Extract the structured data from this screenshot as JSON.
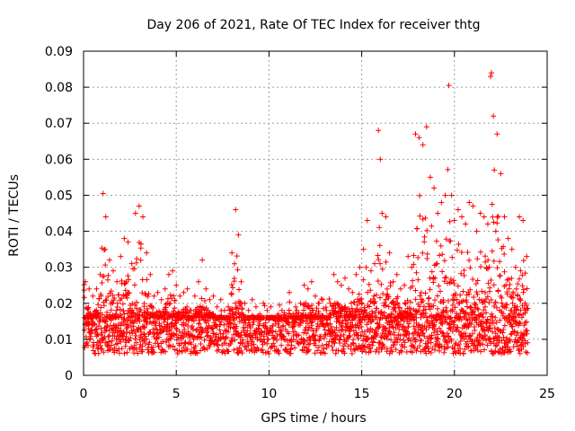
{
  "chart_data": {
    "type": "scatter",
    "title": "Day 206 of 2021, Rate Of TEC Index for receiver thtg",
    "xlabel": "GPS time / hours",
    "ylabel": "ROTI / TECUs",
    "xlim": [
      0,
      25
    ],
    "ylim": [
      0,
      0.09
    ],
    "xticks": [
      "0",
      "5",
      "10",
      "15",
      "20",
      "25"
    ],
    "yticks": [
      "0",
      "0.01",
      "0.02",
      "0.03",
      "0.04",
      "0.05",
      "0.06",
      "0.07",
      "0.08",
      "0.09"
    ],
    "grid": true,
    "marker": "+",
    "color": "#ff0000",
    "series": [
      {
        "x": [
          0.1,
          0.3,
          0.5,
          0.7,
          0.9,
          1.05,
          1.2,
          1.4,
          1.6,
          1.8,
          2.0,
          2.2,
          2.4,
          2.6,
          2.8,
          3.0,
          3.2,
          3.4,
          3.6,
          3.8,
          4.0,
          4.2,
          4.4,
          4.6,
          4.8,
          5.0,
          5.2,
          5.4,
          5.6,
          5.8,
          6.0,
          6.2,
          6.4,
          6.6,
          6.8,
          7.0,
          7.2,
          7.4,
          7.6,
          7.8,
          8.0,
          8.2,
          8.35,
          8.5,
          8.7,
          8.9,
          9.1,
          9.3,
          9.5,
          9.7,
          9.9,
          10.1,
          10.3,
          10.5,
          10.7,
          10.9,
          11.1,
          11.3,
          11.5,
          11.7,
          11.9,
          12.1,
          12.3,
          12.5,
          12.7,
          12.9,
          13.1,
          13.3,
          13.5,
          13.7,
          13.9,
          14.1,
          14.3,
          14.5,
          14.7,
          14.9,
          15.1,
          15.3,
          15.5,
          15.7,
          15.9,
          16.0,
          16.1,
          16.3,
          16.5,
          16.7,
          16.9,
          17.1,
          17.3,
          17.5,
          17.7,
          17.9,
          18.1,
          18.3,
          18.5,
          18.7,
          18.9,
          19.1,
          19.3,
          19.5,
          19.7,
          19.85,
          20.0,
          20.2,
          20.4,
          20.6,
          20.8,
          21.0,
          21.2,
          21.4,
          21.6,
          21.8,
          21.95,
          22.0,
          22.1,
          22.3,
          22.5,
          22.7,
          22.9,
          23.1,
          23.3,
          23.5,
          23.7,
          23.9
        ],
        "y": [
          0.026,
          0.024,
          0.022,
          0.024,
          0.028,
          0.0505,
          0.044,
          0.032,
          0.029,
          0.026,
          0.033,
          0.038,
          0.037,
          0.031,
          0.045,
          0.047,
          0.044,
          0.034,
          0.028,
          0.022,
          0.023,
          0.021,
          0.024,
          0.028,
          0.029,
          0.025,
          0.022,
          0.023,
          0.024,
          0.018,
          0.022,
          0.026,
          0.032,
          0.024,
          0.021,
          0.022,
          0.019,
          0.021,
          0.018,
          0.019,
          0.034,
          0.046,
          0.039,
          0.026,
          0.02,
          0.018,
          0.021,
          0.019,
          0.017,
          0.02,
          0.018,
          0.019,
          0.016,
          0.017,
          0.018,
          0.015,
          0.023,
          0.017,
          0.018,
          0.02,
          0.025,
          0.024,
          0.026,
          0.022,
          0.02,
          0.021,
          0.018,
          0.02,
          0.028,
          0.026,
          0.025,
          0.027,
          0.024,
          0.023,
          0.028,
          0.03,
          0.035,
          0.043,
          0.029,
          0.031,
          0.068,
          0.06,
          0.045,
          0.044,
          0.034,
          0.026,
          0.028,
          0.024,
          0.025,
          0.033,
          0.03,
          0.067,
          0.066,
          0.064,
          0.069,
          0.055,
          0.052,
          0.045,
          0.048,
          0.05,
          0.0805,
          0.05,
          0.043,
          0.046,
          0.044,
          0.042,
          0.048,
          0.047,
          0.04,
          0.045,
          0.044,
          0.042,
          0.083,
          0.084,
          0.072,
          0.067,
          0.056,
          0.044,
          0.038,
          0.035,
          0.03,
          0.044,
          0.043,
          0.033
        ],
        "base": [
          0.006,
          0.016
        ]
      }
    ]
  }
}
